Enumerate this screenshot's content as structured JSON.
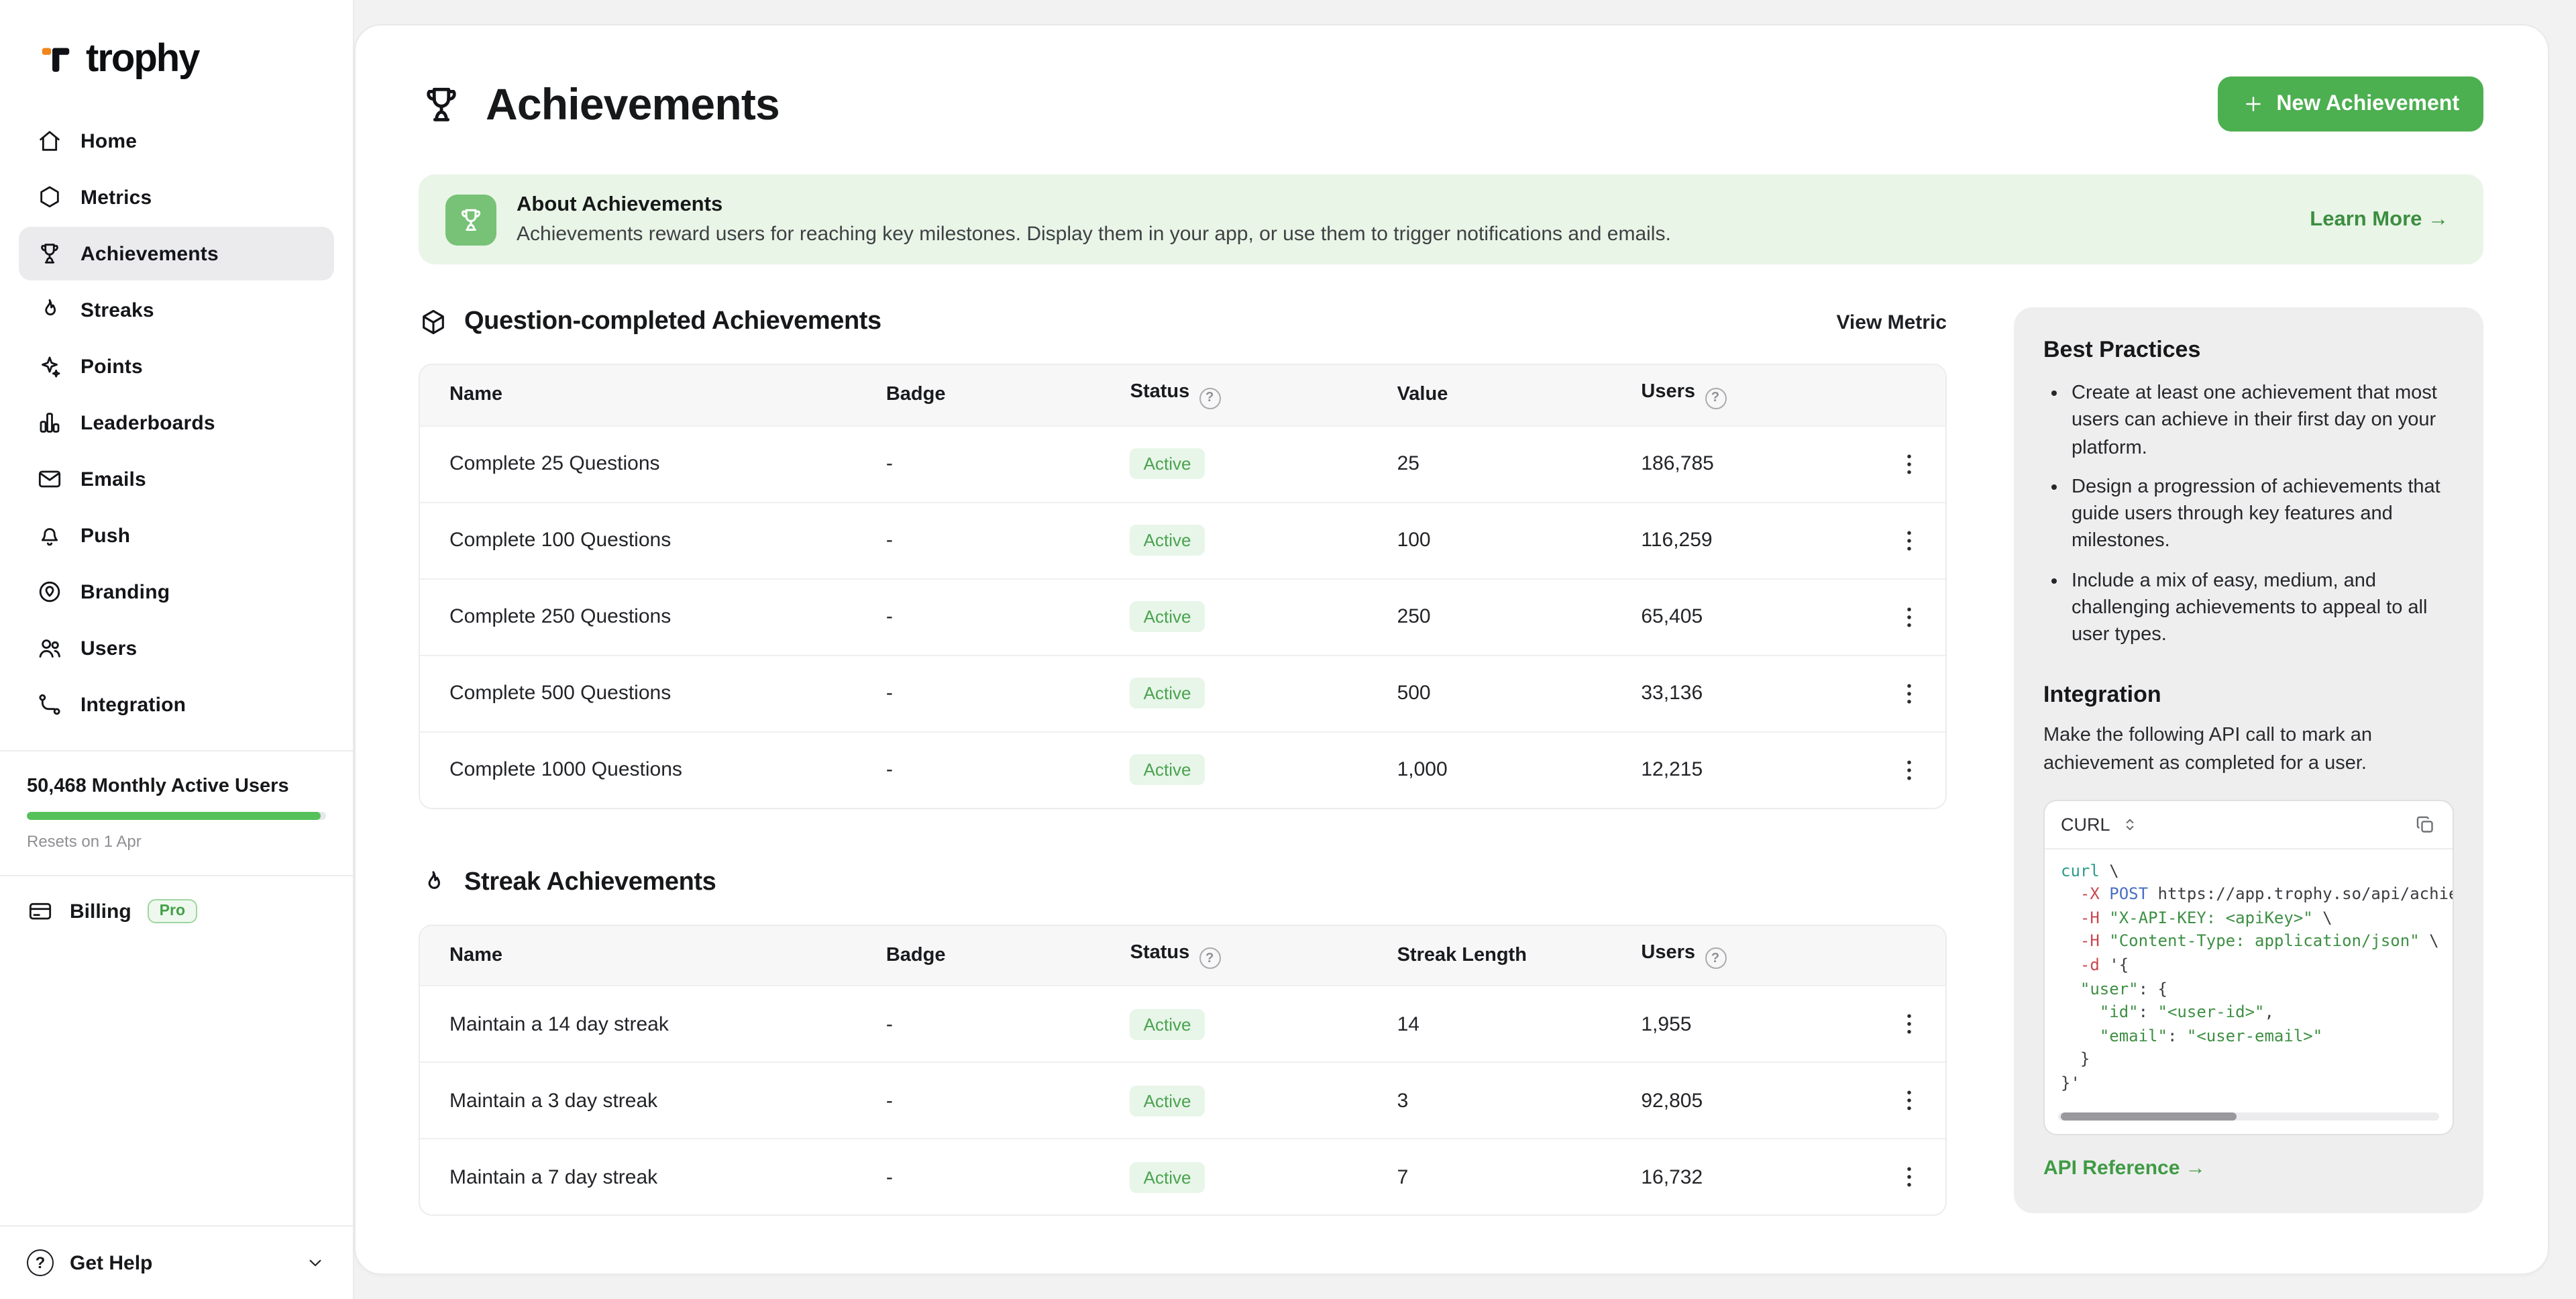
{
  "brand": {
    "name": "trophy"
  },
  "theme": {
    "accent": "#4caf50",
    "accent_dark": "#3c8e40",
    "banner_bg": "#e9f5e7",
    "pill_bg": "#e8f5e9",
    "pill_text": "#4aa34f"
  },
  "sidebar": {
    "nav": [
      {
        "label": "Home",
        "icon": "home"
      },
      {
        "label": "Metrics",
        "icon": "metrics"
      },
      {
        "label": "Achievements",
        "icon": "trophy",
        "active": true
      },
      {
        "label": "Streaks",
        "icon": "flame"
      },
      {
        "label": "Points",
        "icon": "sparkle"
      },
      {
        "label": "Leaderboards",
        "icon": "bars"
      },
      {
        "label": "Emails",
        "icon": "mail"
      },
      {
        "label": "Push",
        "icon": "bell"
      },
      {
        "label": "Branding",
        "icon": "brand"
      },
      {
        "label": "Users",
        "icon": "users"
      },
      {
        "label": "Integration",
        "icon": "integration"
      }
    ],
    "usage": {
      "label": "50,468 Monthly Active Users",
      "resets": "Resets on 1 Apr",
      "progress_percent": 98
    },
    "billing": {
      "label": "Billing",
      "badge": "Pro"
    },
    "help": {
      "label": "Get Help"
    }
  },
  "header": {
    "title": "Achievements",
    "new_achievement": "New Achievement"
  },
  "banner": {
    "title": "About Achievements",
    "description": "Achievements reward users for reaching key milestones. Display them in your app, or use them to trigger notifications and emails.",
    "link": "Learn More →"
  },
  "sections": {
    "questions": {
      "title": "Question-completed Achievements",
      "view_metric": "View Metric",
      "columns": {
        "name": "Name",
        "badge": "Badge",
        "status": "Status",
        "value": "Value",
        "users": "Users"
      },
      "rows": [
        {
          "name": "Complete 25 Questions",
          "badge": "-",
          "status": "Active",
          "value": "25",
          "users": "186,785"
        },
        {
          "name": "Complete 100 Questions",
          "badge": "-",
          "status": "Active",
          "value": "100",
          "users": "116,259"
        },
        {
          "name": "Complete 250 Questions",
          "badge": "-",
          "status": "Active",
          "value": "250",
          "users": "65,405"
        },
        {
          "name": "Complete 500 Questions",
          "badge": "-",
          "status": "Active",
          "value": "500",
          "users": "33,136"
        },
        {
          "name": "Complete 1000 Questions",
          "badge": "-",
          "status": "Active",
          "value": "1,000",
          "users": "12,215"
        }
      ]
    },
    "streaks": {
      "title": "Streak Achievements",
      "columns": {
        "name": "Name",
        "badge": "Badge",
        "status": "Status",
        "value": "Streak Length",
        "users": "Users"
      },
      "rows": [
        {
          "name": "Maintain a 14 day streak",
          "badge": "-",
          "status": "Active",
          "value": "14",
          "users": "1,955"
        },
        {
          "name": "Maintain a 3 day streak",
          "badge": "-",
          "status": "Active",
          "value": "3",
          "users": "92,805"
        },
        {
          "name": "Maintain a 7 day streak",
          "badge": "-",
          "status": "Active",
          "value": "7",
          "users": "16,732"
        }
      ]
    }
  },
  "aside": {
    "best_practices_title": "Best Practices",
    "best_practices": [
      "Create at least one achievement that most users can achieve in their first day on your platform.",
      "Design a progression of achievements that guide users through key features and milestones.",
      "Include a mix of easy, medium, and challenging achievements to appeal to all user types."
    ],
    "integration_title": "Integration",
    "integration_text": "Make the following API call to mark an achievement as completed for a user.",
    "code": {
      "language": "CURL",
      "lines": [
        "curl \\",
        "  -X POST https://app.trophy.so/api/achie",
        "  -H \"X-API-KEY: <apiKey>\" \\",
        "  -H \"Content-Type: application/json\" \\",
        "  -d '{",
        "  \"user\": {",
        "    \"id\": \"<user-id>\",",
        "    \"email\": \"<user-email>\"",
        "  }",
        "}'"
      ]
    },
    "api_reference": "API Reference →"
  }
}
